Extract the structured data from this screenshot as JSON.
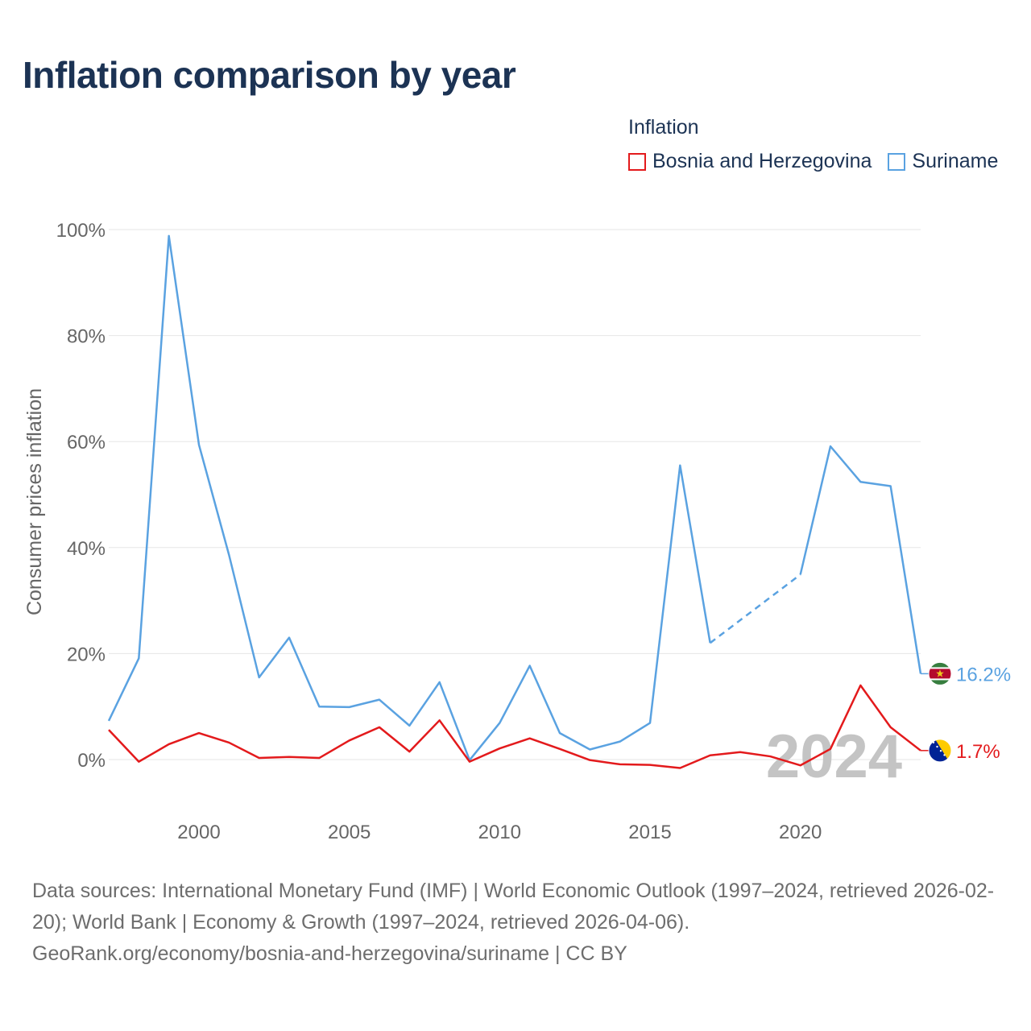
{
  "title": "Inflation comparison by year",
  "legend": {
    "title": "Inflation",
    "items": [
      {
        "name": "Bosnia and Herzegovina",
        "color": "#e31a1c"
      },
      {
        "name": "Suriname",
        "color": "#5aa2e1"
      }
    ]
  },
  "chart_data": {
    "type": "line",
    "title": "Inflation comparison by year",
    "ylabel": "Consumer prices inflation",
    "xlabel": "",
    "xlim": [
      1997,
      2024
    ],
    "ylim": [
      -10,
      100
    ],
    "y_ticks": [
      0,
      20,
      40,
      60,
      80,
      100
    ],
    "y_tick_labels": [
      "0%",
      "20%",
      "40%",
      "60%",
      "80%",
      "100%"
    ],
    "x_ticks": [
      2000,
      2005,
      2010,
      2015,
      2020
    ],
    "x_tick_labels": [
      "2000",
      "2005",
      "2010",
      "2015",
      "2020"
    ],
    "grid": true,
    "legend_position": "top-right",
    "watermark_year": "2024",
    "x": [
      1997,
      1998,
      1999,
      2000,
      2001,
      2002,
      2003,
      2004,
      2005,
      2006,
      2007,
      2008,
      2009,
      2010,
      2011,
      2012,
      2013,
      2014,
      2015,
      2016,
      2017,
      2018,
      2019,
      2020,
      2021,
      2022,
      2023,
      2024
    ],
    "series": [
      {
        "name": "Suriname",
        "color": "#5aa2e1",
        "values": [
          7.3,
          19.1,
          98.8,
          59.4,
          38.6,
          15.5,
          23.0,
          10.0,
          9.9,
          11.3,
          6.4,
          14.6,
          -0.1,
          6.9,
          17.7,
          5.0,
          1.9,
          3.4,
          6.9,
          55.5,
          22.0,
          null,
          null,
          34.9,
          59.1,
          52.4,
          51.6,
          16.2
        ],
        "dashed_segments": [
          [
            2017,
            2020
          ]
        ],
        "end_label": "16.2%",
        "flag": "suriname-flag"
      },
      {
        "name": "Bosnia and Herzegovina",
        "color": "#e31a1c",
        "values": [
          5.6,
          -0.4,
          2.9,
          5.0,
          3.2,
          0.3,
          0.5,
          0.3,
          3.6,
          6.1,
          1.5,
          7.4,
          -0.4,
          2.1,
          4.0,
          2.0,
          -0.1,
          -0.9,
          -1.0,
          -1.6,
          0.8,
          1.4,
          0.6,
          -1.1,
          2.0,
          14.0,
          6.1,
          1.7
        ],
        "dashed_segments": [],
        "end_label": "1.7%",
        "flag": "bosnia-flag"
      }
    ]
  },
  "footer": {
    "line1": "Data sources: International Monetary Fund (IMF) | World Economic Outlook (1997–2024, retrieved 2026-02-20); World Bank | Economy & Growth (1997–2024, retrieved 2026-04-06).",
    "line2": "GeoRank.org/economy/bosnia-and-herzegovina/suriname | CC BY"
  }
}
